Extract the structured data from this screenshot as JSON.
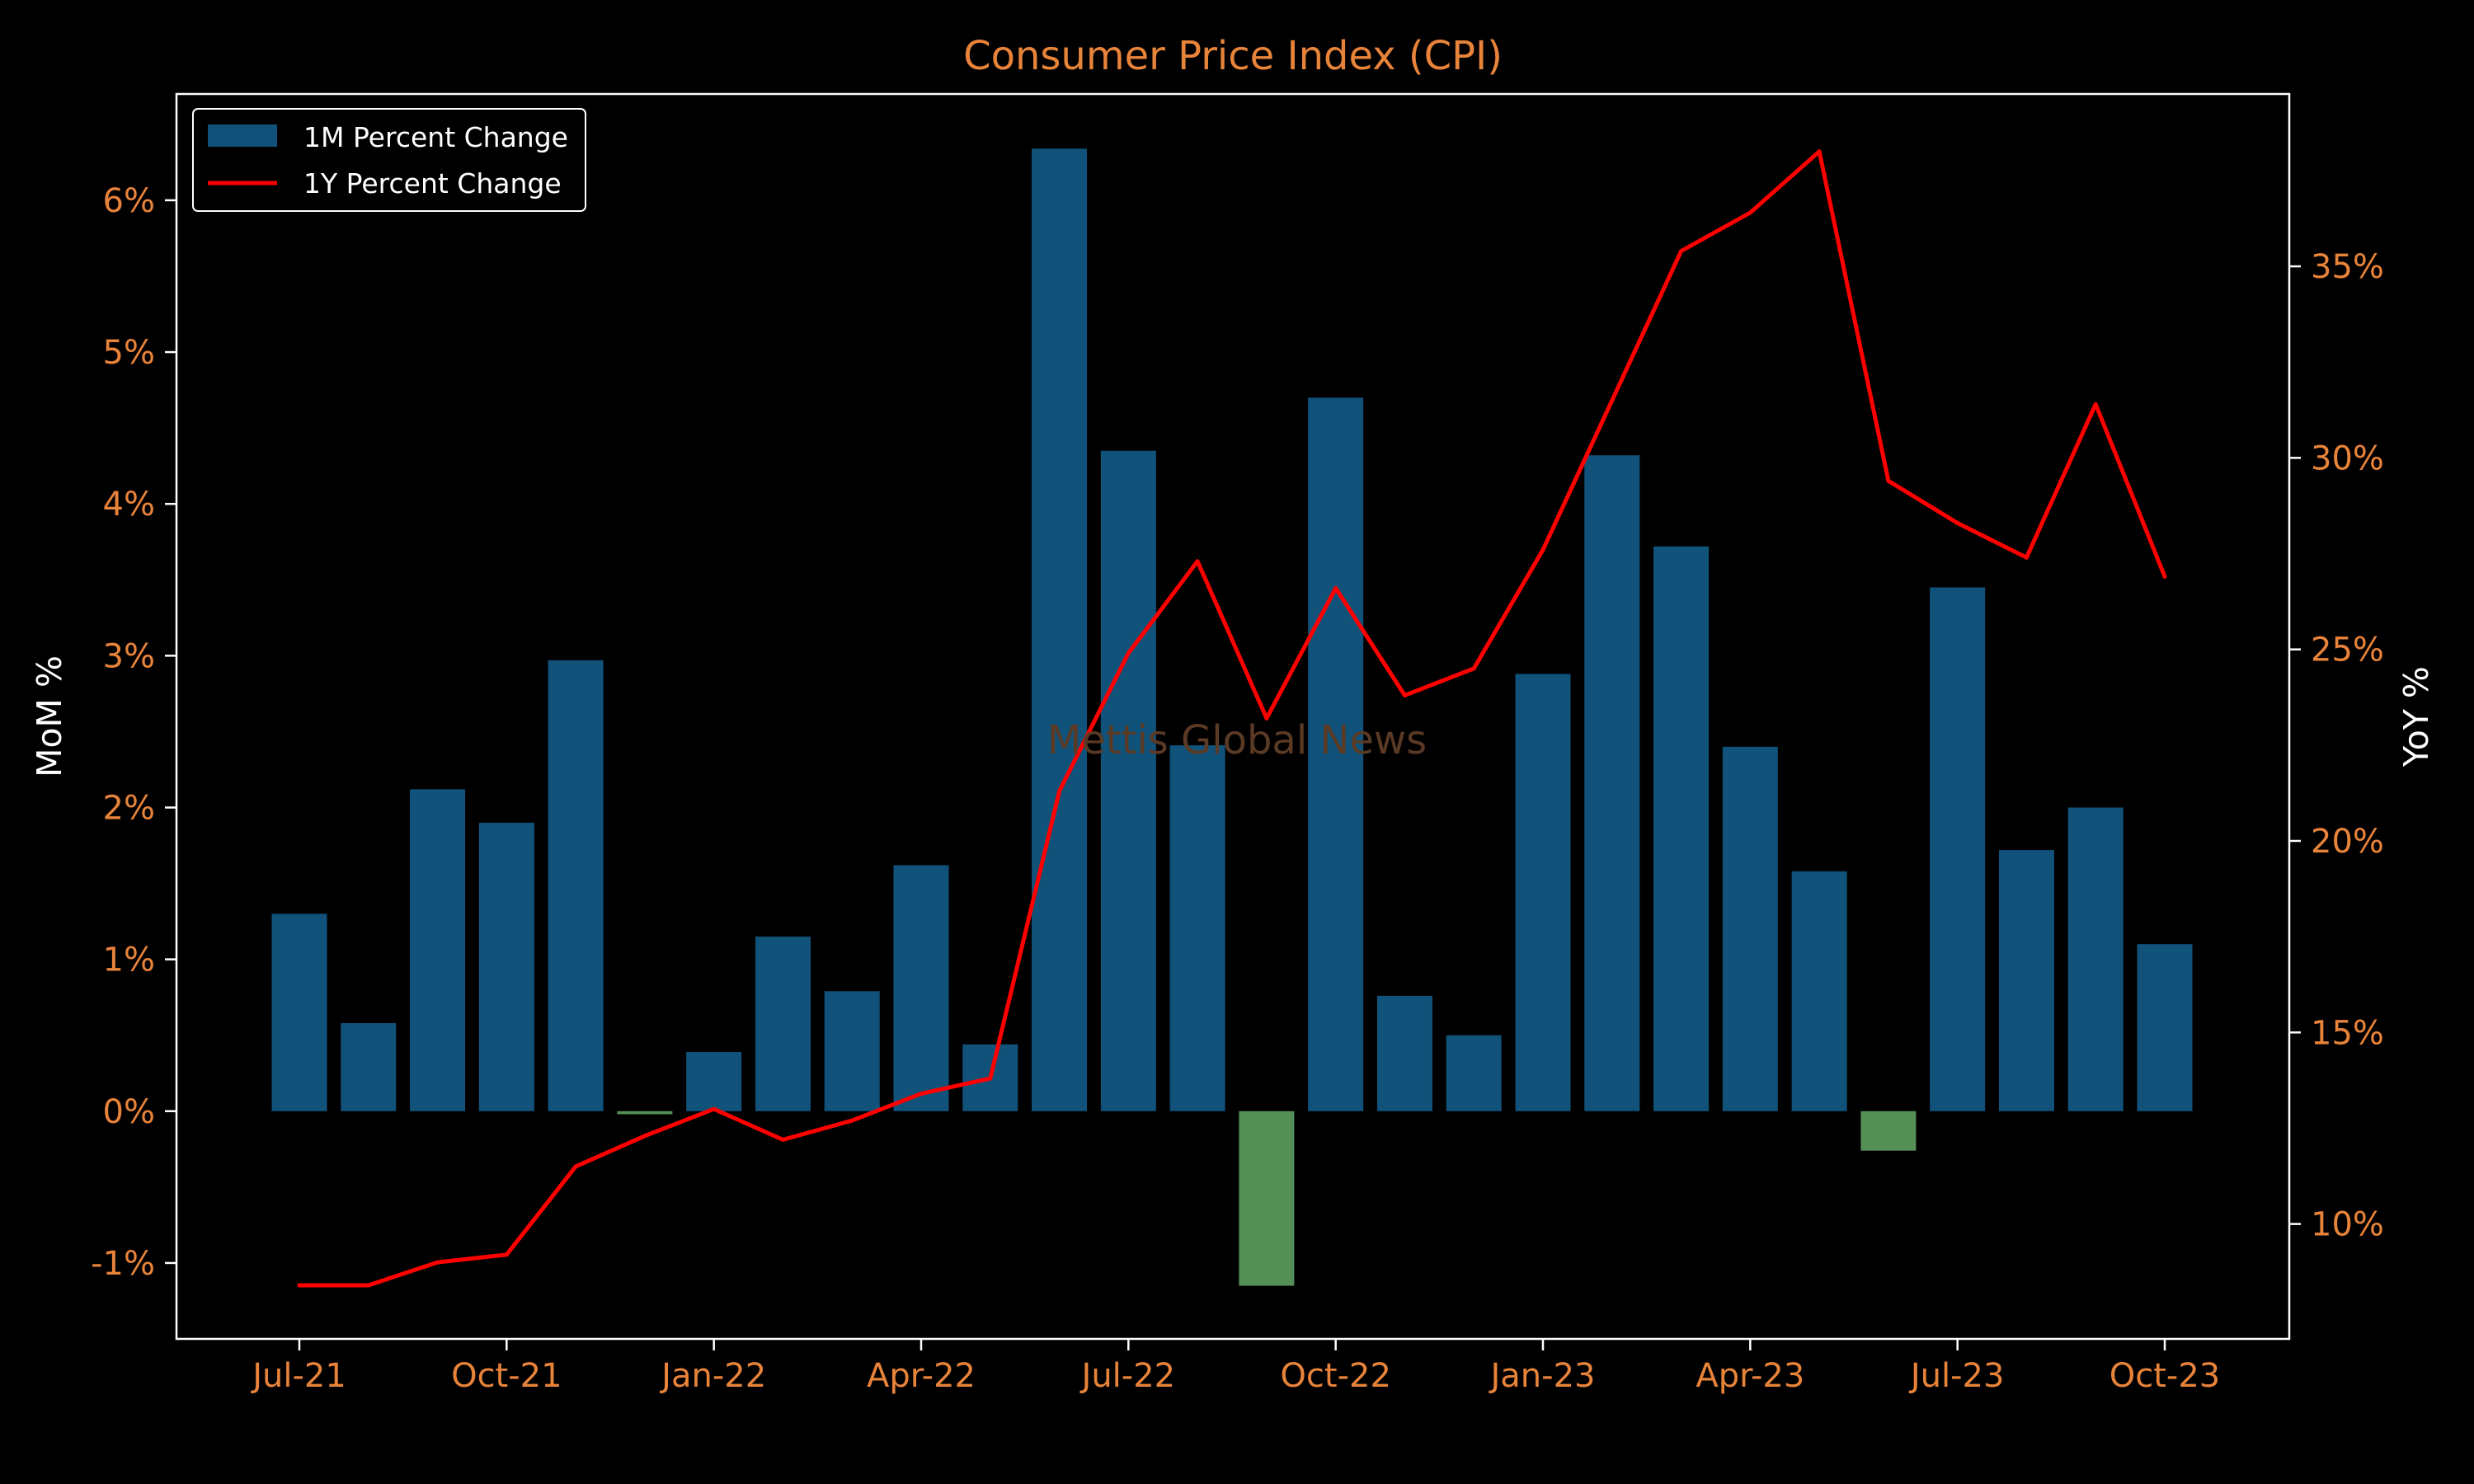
{
  "chart_data": {
    "type": "bar",
    "title": "Consumer Price Index (CPI)",
    "watermark": "Mettis Global News",
    "ylabel_left": "MoM %",
    "ylabel_right": "YoY %",
    "xlabel": "",
    "x_tick_labels": [
      "Jul-21",
      "Oct-21",
      "Jan-22",
      "Apr-22",
      "Jul-22",
      "Oct-22",
      "Jan-23",
      "Apr-23",
      "Jul-23",
      "Oct-23"
    ],
    "y_left_ticks": [
      "-1%",
      "0%",
      "1%",
      "2%",
      "3%",
      "4%",
      "5%",
      "6%"
    ],
    "y_left_tick_values": [
      -1,
      0,
      1,
      2,
      3,
      4,
      5,
      6
    ],
    "y_right_ticks": [
      "10%",
      "15%",
      "20%",
      "25%",
      "30%",
      "35%"
    ],
    "y_right_tick_values": [
      10,
      15,
      20,
      25,
      30,
      35
    ],
    "ylim_left": [
      -1.5,
      6.7
    ],
    "ylim_right": [
      7.0,
      39.5
    ],
    "categories": [
      "Jul-21",
      "Aug-21",
      "Sep-21",
      "Oct-21",
      "Nov-21",
      "Dec-21",
      "Jan-22",
      "Feb-22",
      "Mar-22",
      "Apr-22",
      "May-22",
      "Jun-22",
      "Jul-22",
      "Aug-22",
      "Sep-22",
      "Oct-22",
      "Nov-22",
      "Dec-22",
      "Jan-23",
      "Feb-23",
      "Mar-23",
      "Apr-23",
      "May-23",
      "Jun-23",
      "Jul-23",
      "Aug-23",
      "Sep-23",
      "Oct-23"
    ],
    "series": [
      {
        "name": "1M Percent Change",
        "type": "bar",
        "axis": "left",
        "values": [
          1.3,
          0.58,
          2.12,
          1.9,
          2.97,
          -0.02,
          0.39,
          1.15,
          0.79,
          1.62,
          0.44,
          6.34,
          4.35,
          2.41,
          -1.15,
          4.7,
          0.76,
          0.5,
          2.88,
          4.32,
          3.72,
          2.4,
          1.58,
          -0.26,
          3.45,
          1.72,
          2.0,
          1.1
        ]
      },
      {
        "name": "1Y Percent Change",
        "type": "line",
        "axis": "right",
        "values": [
          8.4,
          8.4,
          9.0,
          9.2,
          11.5,
          12.3,
          13.0,
          12.2,
          12.7,
          13.4,
          13.8,
          21.3,
          24.9,
          27.3,
          23.2,
          26.6,
          23.8,
          24.5,
          27.6,
          31.5,
          35.4,
          36.4,
          38.0,
          29.4,
          28.3,
          27.4,
          31.4,
          26.9
        ]
      }
    ],
    "legend_location": "upper left",
    "grid": false
  },
  "colors": {
    "background": "#000000",
    "axis_spine": "#ffffff",
    "tick_label": "#e8833a",
    "title": "#e8833a",
    "axis_title": "#ffffff",
    "bar_positive": "#11527a",
    "bar_negative": "#548f56",
    "line": "#ff0000",
    "legend_text": "#ffffff",
    "watermark": "#5a3a24"
  }
}
